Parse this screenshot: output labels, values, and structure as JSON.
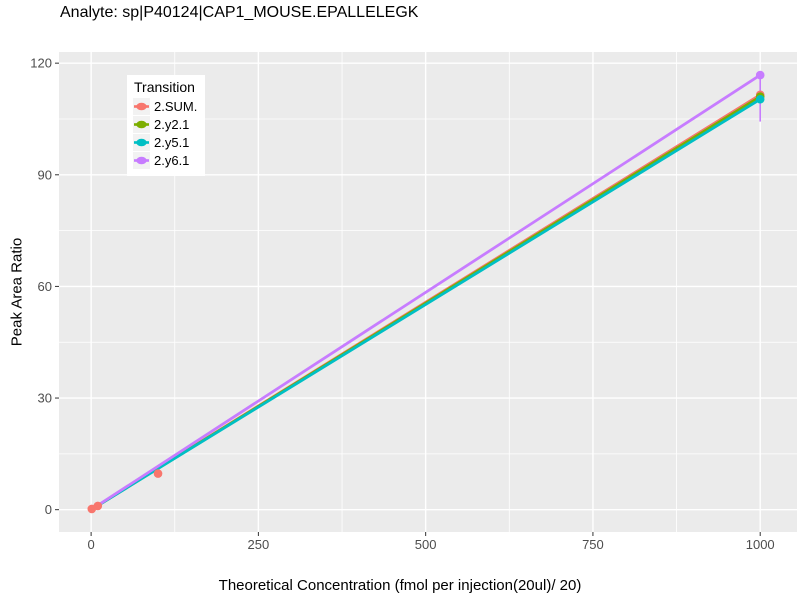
{
  "chart_data": {
    "type": "line",
    "title": "Analyte: sp|P40124|CAP1_MOUSE.EPALLELEGK",
    "xlabel": "Theoretical Concentration (fmol per injection(20ul)/ 20)",
    "ylabel": "Peak Area Ratio",
    "legend_title": "Transition",
    "legend_position": "inset-top-left",
    "grid": true,
    "xlim": [
      -48,
      1055
    ],
    "ylim": [
      -6,
      123
    ],
    "x_ticks": [
      0,
      250,
      500,
      750,
      1000
    ],
    "y_ticks": [
      0,
      30,
      60,
      90,
      120
    ],
    "x_minor_ticks": [
      125,
      375,
      625,
      875
    ],
    "y_minor_ticks": [
      15,
      45,
      75,
      105
    ],
    "series": [
      {
        "name": "2.SUM.",
        "color": "#F8766D",
        "line": {
          "x": [
            0,
            1000
          ],
          "y": [
            0,
            111.5
          ]
        },
        "points": [
          [
            1,
            0.2
          ],
          [
            10,
            1.0
          ],
          [
            100,
            9.7
          ],
          [
            1000,
            111.5
          ]
        ]
      },
      {
        "name": "2.y2.1",
        "color": "#7CAE00",
        "line": {
          "x": [
            0,
            1000
          ],
          "y": [
            0,
            111.0
          ]
        },
        "points": [
          [
            1000,
            111.0
          ]
        ]
      },
      {
        "name": "2.y5.1",
        "color": "#00BFC4",
        "line": {
          "x": [
            0,
            1000
          ],
          "y": [
            0,
            110.3
          ]
        },
        "points": [
          [
            1000,
            110.3
          ]
        ]
      },
      {
        "name": "2.y6.1",
        "color": "#C77CFF",
        "line": {
          "x": [
            0,
            1000
          ],
          "y": [
            0,
            116.8
          ]
        },
        "points": [
          [
            1000,
            116.8
          ]
        ],
        "error_bars": [
          {
            "x": 1000,
            "low": 104.3,
            "high": 116.8
          }
        ]
      }
    ],
    "colors": {
      "panel_background": "#EBEBEB",
      "grid_line": "#FFFFFF",
      "tick_label": "#4D4D4D",
      "tick_mark": "#333333",
      "axis_title": "#000000",
      "legend_key_background": "#F2F2F2"
    }
  }
}
